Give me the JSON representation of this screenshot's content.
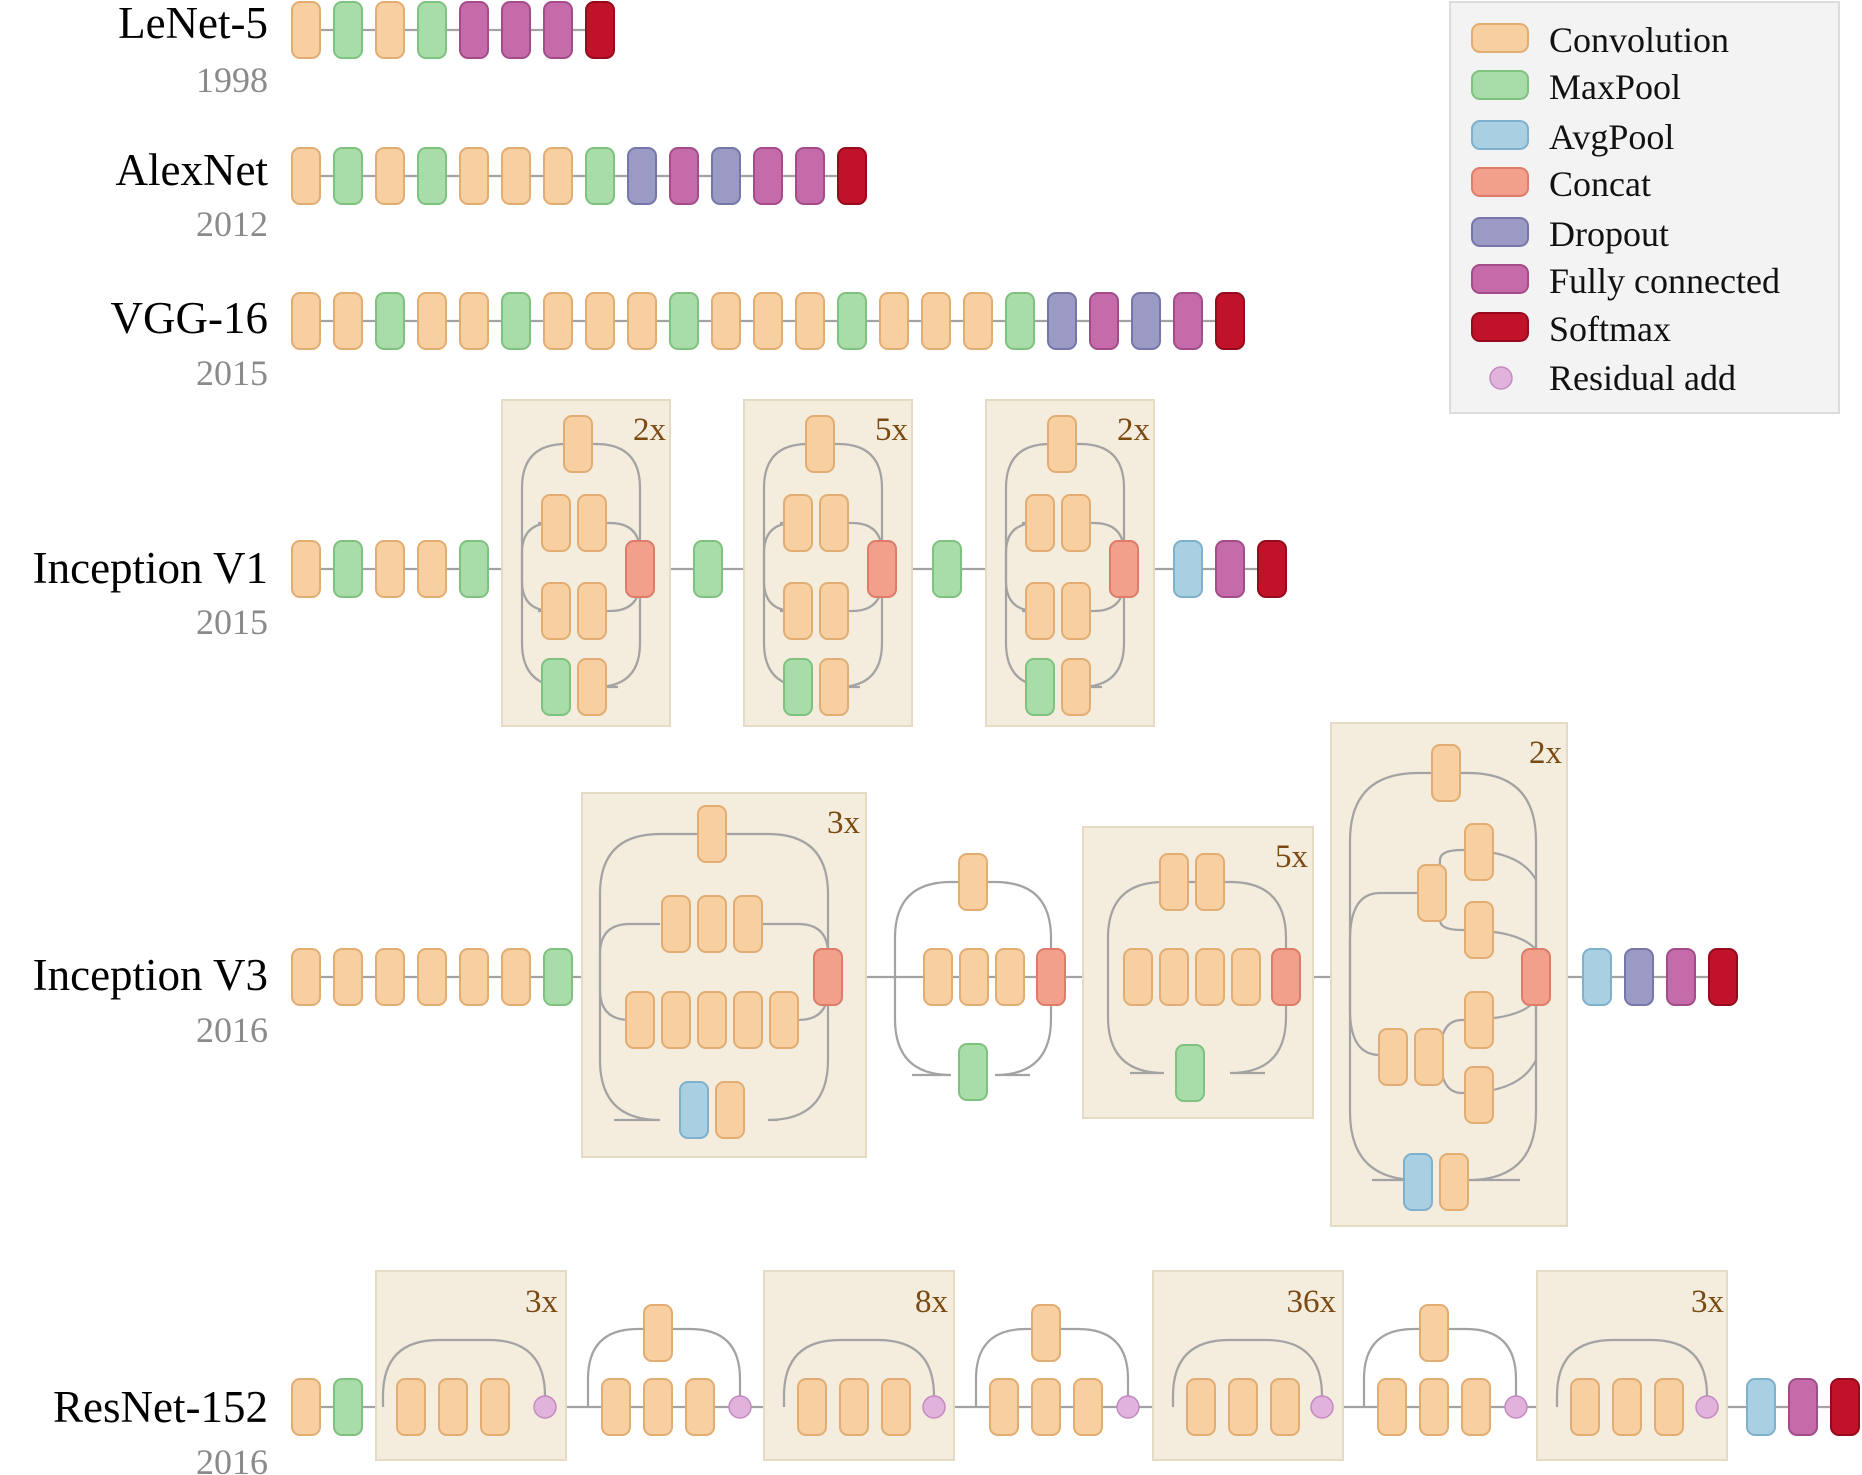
{
  "colors": {
    "conv": "#f7cfa0",
    "maxpool": "#a8dca8",
    "avgpool": "#a9cfe2",
    "concat": "#f2a08c",
    "dropout": "#9a9ac4",
    "fc": "#c56ba9",
    "softmax": "#c01228",
    "resadd": "#e0b2dc"
  },
  "legend": {
    "items": [
      {
        "key": "conv",
        "label": "Convolution"
      },
      {
        "key": "maxpool",
        "label": "MaxPool"
      },
      {
        "key": "avgpool",
        "label": "AvgPool"
      },
      {
        "key": "concat",
        "label": "Concat"
      },
      {
        "key": "dropout",
        "label": "Dropout"
      },
      {
        "key": "fc",
        "label": "Fully connected"
      },
      {
        "key": "softmax",
        "label": "Softmax"
      },
      {
        "key": "resadd",
        "label": "Residual add"
      }
    ]
  },
  "networks": [
    {
      "name": "LeNet-5",
      "year": "1998",
      "repeats": []
    },
    {
      "name": "AlexNet",
      "year": "2012",
      "repeats": []
    },
    {
      "name": "VGG-16",
      "year": "2015",
      "repeats": []
    },
    {
      "name": "Inception V1",
      "year": "2015",
      "repeats": [
        "2x",
        "5x",
        "2x"
      ]
    },
    {
      "name": "Inception V3",
      "year": "2016",
      "repeats": [
        "3x",
        "5x",
        "2x"
      ]
    },
    {
      "name": "ResNet-152",
      "year": "2016",
      "repeats": [
        "3x",
        "8x",
        "36x",
        "3x"
      ]
    }
  ]
}
